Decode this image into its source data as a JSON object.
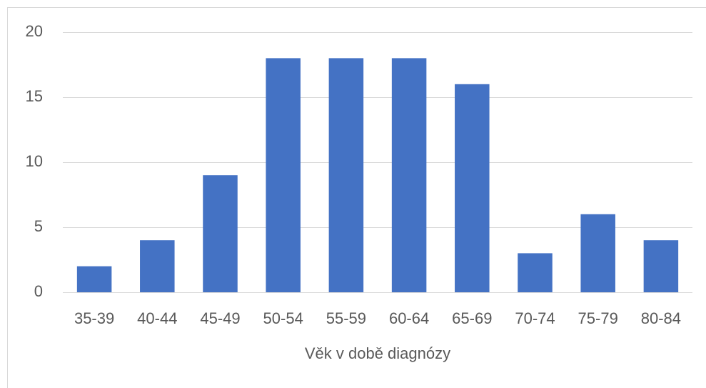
{
  "chart_data": {
    "type": "bar",
    "x_label": "Věk v době diagnózy",
    "categories": [
      "35-39",
      "40-44",
      "45-49",
      "50-54",
      "55-59",
      "60-64",
      "65-69",
      "70-74",
      "75-79",
      "80-84"
    ],
    "values": [
      2,
      4,
      9,
      18,
      18,
      18,
      16,
      3,
      6,
      4
    ],
    "color": "#4472c4",
    "ylim": [
      0,
      20
    ],
    "yticks": [
      0,
      5,
      10,
      15,
      20
    ],
    "grid": true
  }
}
